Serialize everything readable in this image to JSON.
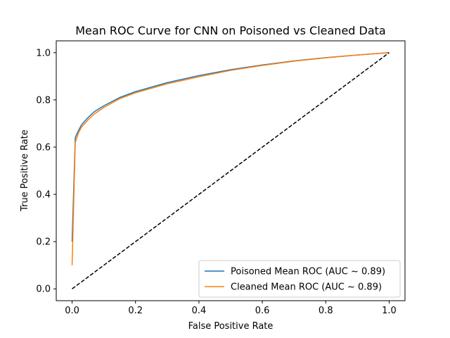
{
  "chart_data": {
    "type": "line",
    "title": "Mean ROC Curve for CNN on Poisoned vs Cleaned Data",
    "xlabel": "False Positive Rate",
    "ylabel": "True Positive Rate",
    "xlim": [
      -0.05,
      1.05
    ],
    "ylim": [
      -0.05,
      1.05
    ],
    "xticks": [
      "0.0",
      "0.2",
      "0.4",
      "0.6",
      "0.8",
      "1.0"
    ],
    "yticks": [
      "0.0",
      "0.2",
      "0.4",
      "0.6",
      "0.8",
      "1.0"
    ],
    "grid": false,
    "legend_position": "lower-right",
    "series": [
      {
        "name": "Poisoned Mean ROC (AUC ~ 0.89)",
        "color": "#1f77b4",
        "x": [
          0.0,
          0.01,
          0.02,
          0.03,
          0.05,
          0.07,
          0.1,
          0.15,
          0.2,
          0.3,
          0.4,
          0.5,
          0.6,
          0.7,
          0.8,
          0.9,
          1.0
        ],
        "y": [
          0.2,
          0.64,
          0.67,
          0.695,
          0.725,
          0.75,
          0.775,
          0.81,
          0.835,
          0.873,
          0.903,
          0.928,
          0.948,
          0.965,
          0.979,
          0.99,
          1.0
        ]
      },
      {
        "name": "Cleaned Mean ROC (AUC ~ 0.89)",
        "color": "#ff7f0e",
        "x": [
          0.0,
          0.01,
          0.02,
          0.03,
          0.05,
          0.07,
          0.1,
          0.15,
          0.2,
          0.3,
          0.4,
          0.5,
          0.6,
          0.7,
          0.8,
          0.9,
          1.0
        ],
        "y": [
          0.1,
          0.62,
          0.66,
          0.685,
          0.715,
          0.74,
          0.768,
          0.805,
          0.83,
          0.868,
          0.898,
          0.925,
          0.946,
          0.964,
          0.978,
          0.99,
          1.0
        ]
      },
      {
        "name": "",
        "color": "#000000",
        "dashed": true,
        "x": [
          0.0,
          1.0
        ],
        "y": [
          0.0,
          1.0
        ]
      }
    ]
  }
}
